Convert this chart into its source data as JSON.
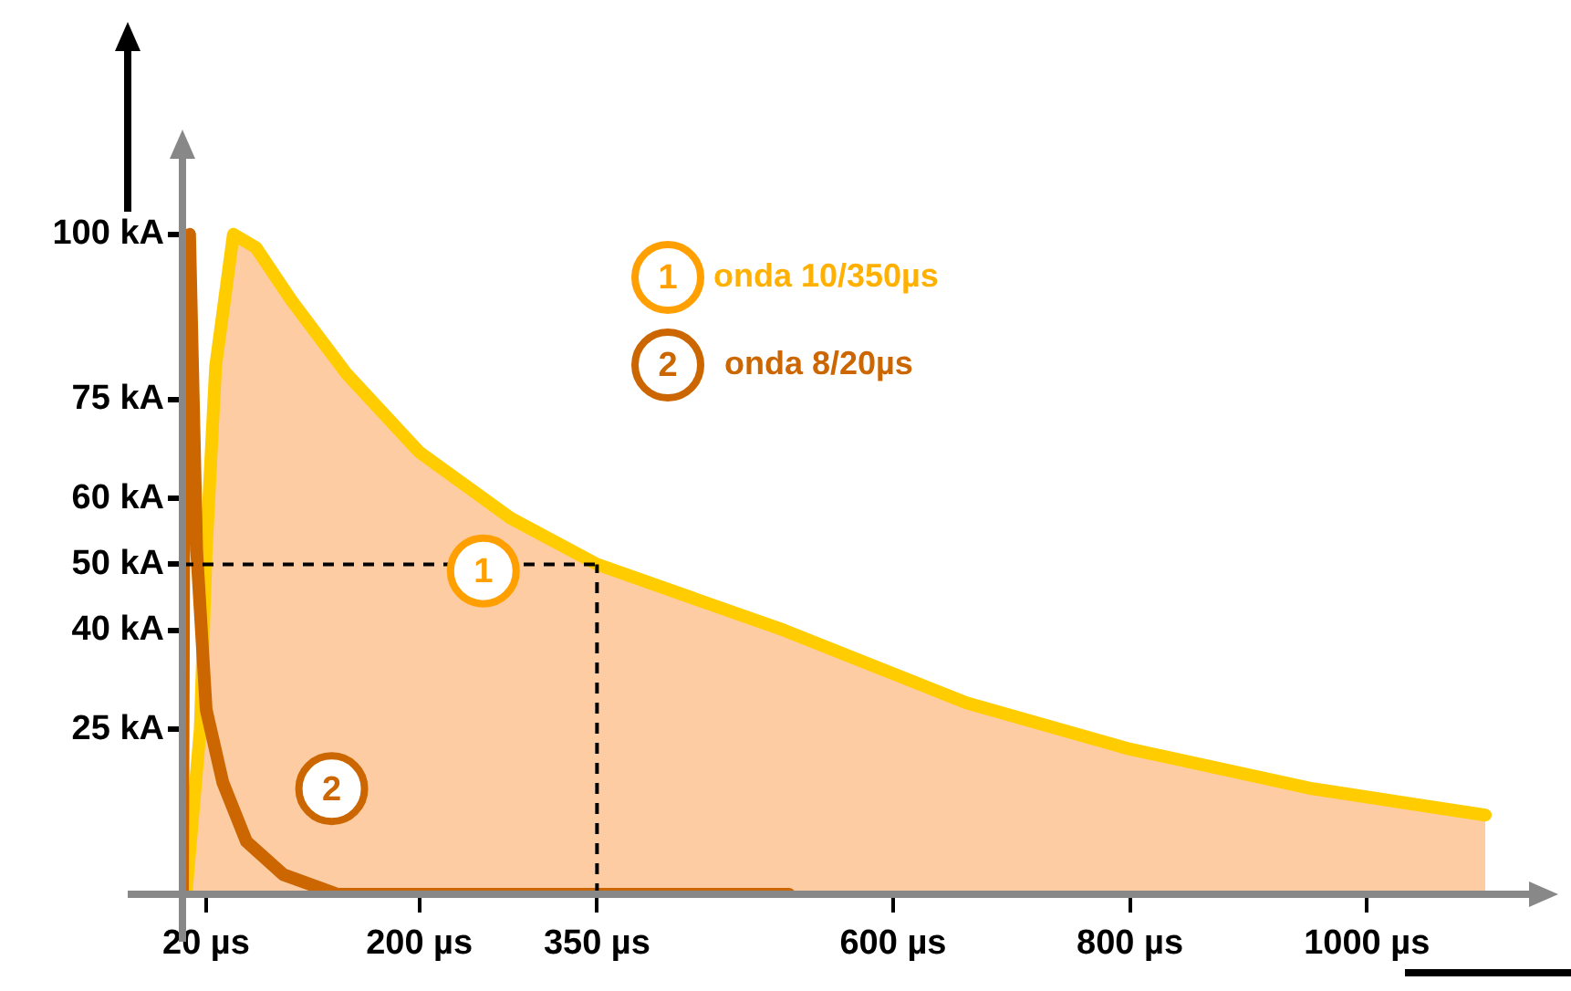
{
  "chart_data": {
    "type": "line",
    "series": [
      {
        "name": "onda 10/350µs",
        "type": "area",
        "color": "#ffcc00",
        "x": [
          3,
          15,
          20,
          28,
          43,
          62,
          92,
          138,
          200,
          277,
          350,
          508,
          662,
          800,
          954,
          1100
        ],
        "values": [
          0,
          25,
          52,
          80,
          100,
          98,
          90,
          79,
          67,
          57,
          50,
          40,
          29,
          22,
          16,
          12
        ]
      },
      {
        "name": "onda 8/20µs",
        "color": "#cc6600",
        "x": [
          0,
          2,
          6,
          12,
          20,
          34,
          54,
          85,
          131,
          512
        ],
        "values": [
          0,
          99,
          100,
          52,
          28,
          17,
          8,
          3,
          0,
          0
        ]
      }
    ],
    "xlim": [
      0,
      1140
    ],
    "xticks": [
      {
        "value": 20,
        "label": "20 µs"
      },
      {
        "value": 200,
        "label": "200 µs"
      },
      {
        "value": 350,
        "label": "350 µs"
      },
      {
        "value": 600,
        "label": "600 µs"
      },
      {
        "value": 800,
        "label": "800 µs"
      },
      {
        "value": 1000,
        "label": "1000 µs"
      }
    ],
    "ylim": [
      0,
      112
    ],
    "yticks": [
      {
        "value": 25,
        "label": "25 kA"
      },
      {
        "value": 40,
        "label": "40 kA"
      },
      {
        "value": 50,
        "label": "50 kA"
      },
      {
        "value": 60,
        "label": "60 kA"
      },
      {
        "value": 75,
        "label": "75 kA"
      },
      {
        "value": 100,
        "label": "100 kA"
      }
    ],
    "ref_lines": [
      {
        "axis": "x",
        "value": 350,
        "color": "#000000",
        "line_style": "dashed"
      },
      {
        "axis": "y",
        "value": 50,
        "color": "#000000",
        "line_style": "dashed"
      }
    ],
    "annotations": [
      "1",
      "2",
      {
        "text": "1",
        "x": 254,
        "y": 49
      },
      {
        "text": "2",
        "x": 126,
        "y": 16
      }
    ],
    "legend": "top",
    "grid": false,
    "marker": "none",
    "line_style": "solid"
  }
}
